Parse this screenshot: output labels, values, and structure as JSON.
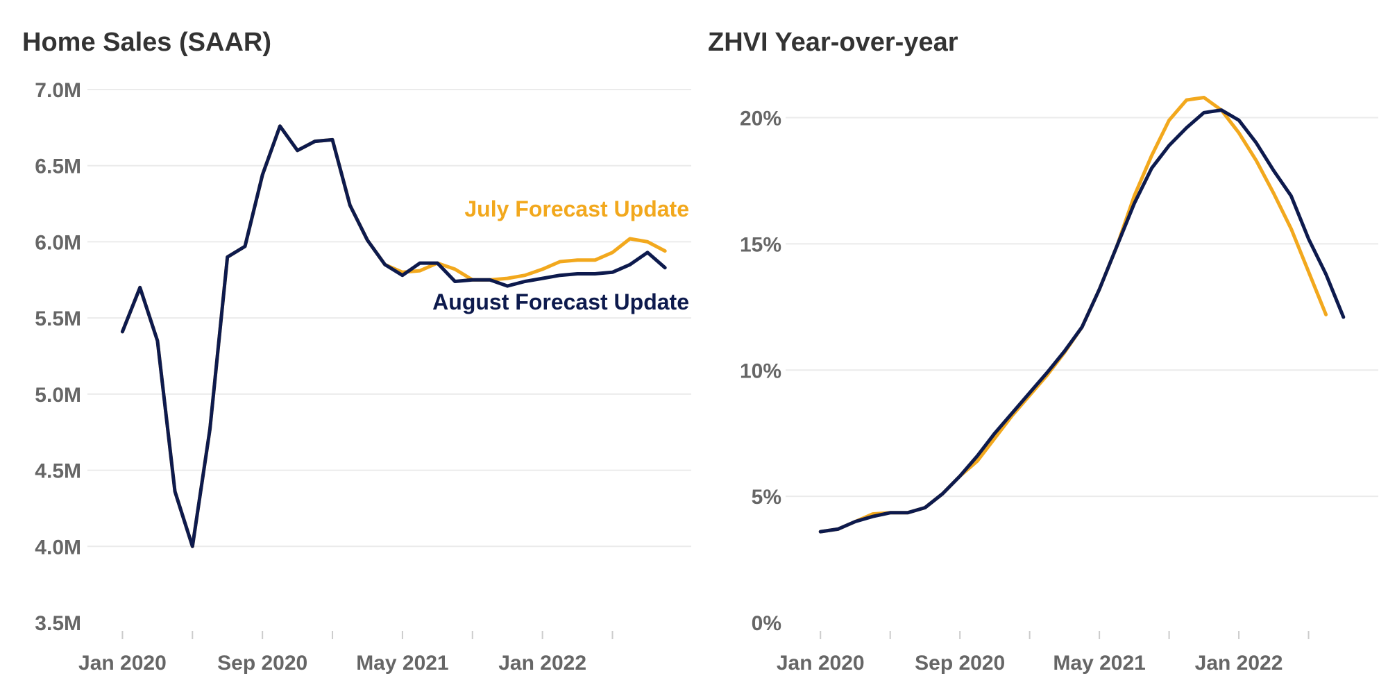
{
  "colors": {
    "july": "#F2A81D",
    "august": "#0D1A4D",
    "grid": "#EBEBEB",
    "axis_text": "#666666",
    "title": "#333333"
  },
  "chart_data": [
    {
      "type": "line",
      "title": "Home Sales (SAAR)",
      "xlabel": "",
      "ylabel": "",
      "ylim": [
        3.5,
        7.0
      ],
      "ytick_values": [
        3.5,
        4.0,
        4.5,
        5.0,
        5.5,
        6.0,
        6.5,
        7.0
      ],
      "ytick_labels": [
        "3.5M",
        "4.0M",
        "4.5M",
        "5.0M",
        "5.5M",
        "6.0M",
        "6.5M",
        "7.0M"
      ],
      "xtick_labels": [
        "Jan 2020",
        "Sep 2020",
        "May 2021",
        "Jan 2022"
      ],
      "xtick_months": [
        0,
        8,
        16,
        24
      ],
      "minor_tick_months": [
        0,
        4,
        8,
        12,
        16,
        20,
        24,
        28
      ],
      "x_months": [
        -2,
        32.5
      ],
      "grid": true,
      "legend": "inline-labels",
      "series": [
        {
          "name": "July Forecast Update",
          "color": "#F2A81D",
          "x": [
            0,
            1,
            2,
            3,
            4,
            5,
            6,
            7,
            8,
            9,
            10,
            11,
            12,
            13,
            14,
            15,
            16,
            17,
            18,
            19,
            20,
            21,
            22,
            23,
            24,
            25,
            26,
            27,
            28,
            29,
            30,
            31,
            32
          ],
          "values": [
            5.41,
            5.7,
            5.35,
            4.36,
            4.0,
            4.77,
            5.9,
            5.97,
            6.44,
            6.76,
            6.6,
            6.66,
            6.67,
            6.24,
            6.01,
            5.85,
            5.8,
            5.81,
            5.86,
            5.82,
            5.75,
            5.75,
            5.76,
            5.78,
            5.82,
            5.87,
            5.88,
            5.88,
            5.93,
            6.02,
            6.0,
            5.94,
            null
          ]
        },
        {
          "name": "August Forecast Update",
          "color": "#0D1A4D",
          "x": [
            0,
            1,
            2,
            3,
            4,
            5,
            6,
            7,
            8,
            9,
            10,
            11,
            12,
            13,
            14,
            15,
            16,
            17,
            18,
            19,
            20,
            21,
            22,
            23,
            24,
            25,
            26,
            27,
            28,
            29,
            30,
            31,
            32
          ],
          "values": [
            5.41,
            5.7,
            5.35,
            4.36,
            4.0,
            4.77,
            5.9,
            5.97,
            6.44,
            6.76,
            6.6,
            6.66,
            6.67,
            6.24,
            6.01,
            5.85,
            5.78,
            5.86,
            5.86,
            5.74,
            5.75,
            5.75,
            5.71,
            5.74,
            5.76,
            5.78,
            5.79,
            5.79,
            5.8,
            5.85,
            5.93,
            5.83,
            null
          ]
        }
      ],
      "labels": {
        "july": "July Forecast Update",
        "august": "August Forecast Update"
      }
    },
    {
      "type": "line",
      "title": "ZHVI Year-over-year",
      "xlabel": "",
      "ylabel": "",
      "ylim": [
        0,
        21.5
      ],
      "ytick_values": [
        0,
        5,
        10,
        15,
        20
      ],
      "ytick_labels": [
        "0%",
        "5%",
        "10%",
        "15%",
        "20%"
      ],
      "xtick_labels": [
        "Jan 2020",
        "Sep 2020",
        "May 2021",
        "Jan 2022"
      ],
      "xtick_months": [
        0,
        8,
        16,
        24
      ],
      "minor_tick_months": [
        0,
        4,
        8,
        12,
        16,
        20,
        24,
        28
      ],
      "x_months": [
        -2,
        32
      ],
      "grid": true,
      "legend": "none",
      "series": [
        {
          "name": "July Forecast Update",
          "color": "#F2A81D",
          "x": [
            0,
            1,
            2,
            3,
            4,
            5,
            6,
            7,
            8,
            9,
            10,
            11,
            12,
            13,
            14,
            15,
            16,
            17,
            18,
            19,
            20,
            21,
            22,
            23,
            24,
            25,
            26,
            27,
            28,
            29
          ],
          "values": [
            3.6,
            3.7,
            4.0,
            4.3,
            4.35,
            4.35,
            4.55,
            5.1,
            5.8,
            6.4,
            7.3,
            8.2,
            9.0,
            9.8,
            10.7,
            11.7,
            13.2,
            14.9,
            16.9,
            18.5,
            19.9,
            20.7,
            20.8,
            20.3,
            19.4,
            18.3,
            17.0,
            15.6,
            13.9,
            12.2
          ]
        },
        {
          "name": "August Forecast Update",
          "color": "#0D1A4D",
          "x": [
            0,
            1,
            2,
            3,
            4,
            5,
            6,
            7,
            8,
            9,
            10,
            11,
            12,
            13,
            14,
            15,
            16,
            17,
            18,
            19,
            20,
            21,
            22,
            23,
            24,
            25,
            26,
            27,
            28,
            29,
            30
          ],
          "values": [
            3.6,
            3.7,
            4.0,
            4.2,
            4.35,
            4.35,
            4.55,
            5.1,
            5.8,
            6.6,
            7.5,
            8.3,
            9.1,
            9.9,
            10.75,
            11.7,
            13.2,
            14.9,
            16.6,
            18.0,
            18.9,
            19.6,
            20.2,
            20.3,
            19.9,
            19.0,
            17.9,
            16.9,
            15.2,
            13.8,
            12.1
          ]
        }
      ]
    }
  ]
}
